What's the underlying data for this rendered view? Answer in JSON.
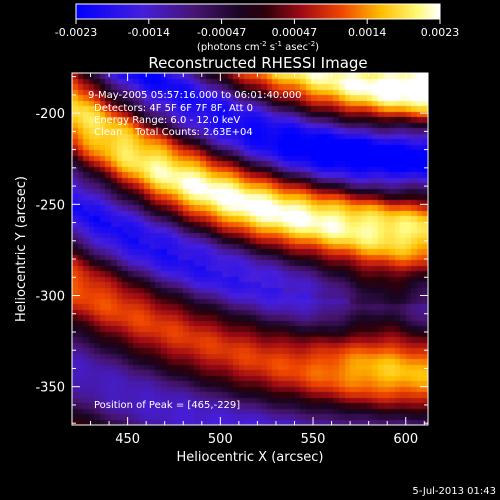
{
  "chart_data": {
    "type": "heatmap",
    "title": "Reconstructed RHESSI Image",
    "xlabel": "Heliocentric X (arcsec)",
    "ylabel": "Heliocentric Y (arcsec)",
    "xlim": [
      420,
      612
    ],
    "ylim": [
      -371,
      -178
    ],
    "xticks": [
      450,
      500,
      550,
      600
    ],
    "yticks": [
      -200,
      -250,
      -300,
      -350
    ],
    "colorbar": {
      "range": [
        -0.0023,
        0.0023
      ],
      "tick_labels": [
        "-0.0023",
        "-0.0014",
        "-0.00047",
        "0.00047",
        "0.0014",
        "0.0023"
      ],
      "unit_prefix": "(photons cm",
      "unit_sup1": "-2",
      "unit_mid1": " s",
      "unit_sup2": "-1",
      "unit_mid2": " asec",
      "unit_sup3": "-2",
      "unit_suffix": ")"
    },
    "annotations": {
      "line1": "9-May-2005 05:57:16.000 to 06:01:40.000",
      "line2": "Detectors: 4F 5F 6F 7F 8F, Att 0",
      "line3": "Energy Range: 6.0 - 12.0 keV",
      "line4": "Clean    Total Counts: 2.63E+04",
      "peak": "Position of Peak = [465,-229]"
    },
    "peak_position": [
      465,
      -229
    ],
    "timestamp": "5-Jul-2013 01:43"
  }
}
